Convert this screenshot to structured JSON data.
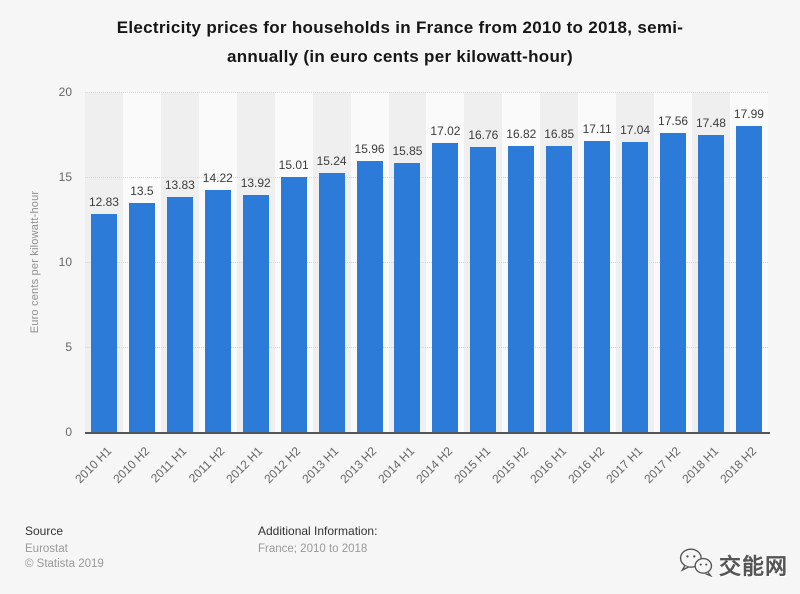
{
  "title_lines": [
    "Electricity prices for households in France from 2010 to 2018, semi-",
    "annually (in euro cents per kilowatt-hour)"
  ],
  "chart_data": {
    "type": "bar",
    "title": "Electricity prices for households in France from 2010 to 2018, semi-annually (in euro cents per kilowatt-hour)",
    "categories": [
      "2010 H1",
      "2010 H2",
      "2011 H1",
      "2011 H2",
      "2012 H1",
      "2012 H2",
      "2013 H1",
      "2013 H2",
      "2014 H1",
      "2014 H2",
      "2015 H1",
      "2015 H2",
      "2016 H1",
      "2016 H2",
      "2017 H1",
      "2017 H2",
      "2018 H1",
      "2018 H2"
    ],
    "values": [
      12.83,
      13.5,
      13.83,
      14.22,
      13.92,
      15.01,
      15.24,
      15.96,
      15.85,
      17.02,
      16.76,
      16.82,
      16.85,
      17.11,
      17.04,
      17.56,
      17.48,
      17.99
    ],
    "xlabel": "",
    "ylabel": "Euro cents per kilowatt-hour",
    "ylim": [
      0,
      20
    ],
    "yticks": [
      0,
      5,
      10,
      15,
      20
    ],
    "grid": true,
    "legend": "none",
    "bar_color": "#2d7bd9",
    "band_colors": [
      "#efefef",
      "#fafafa"
    ]
  },
  "footer": {
    "source_label": "Source",
    "source_value": "Eurostat",
    "copyright": "© Statista 2019",
    "additional_info_label": "Additional Information:",
    "additional_info_value": "France; 2010 to 2018"
  },
  "logo": {
    "icon": "wechat-icon",
    "text": "交能网"
  }
}
